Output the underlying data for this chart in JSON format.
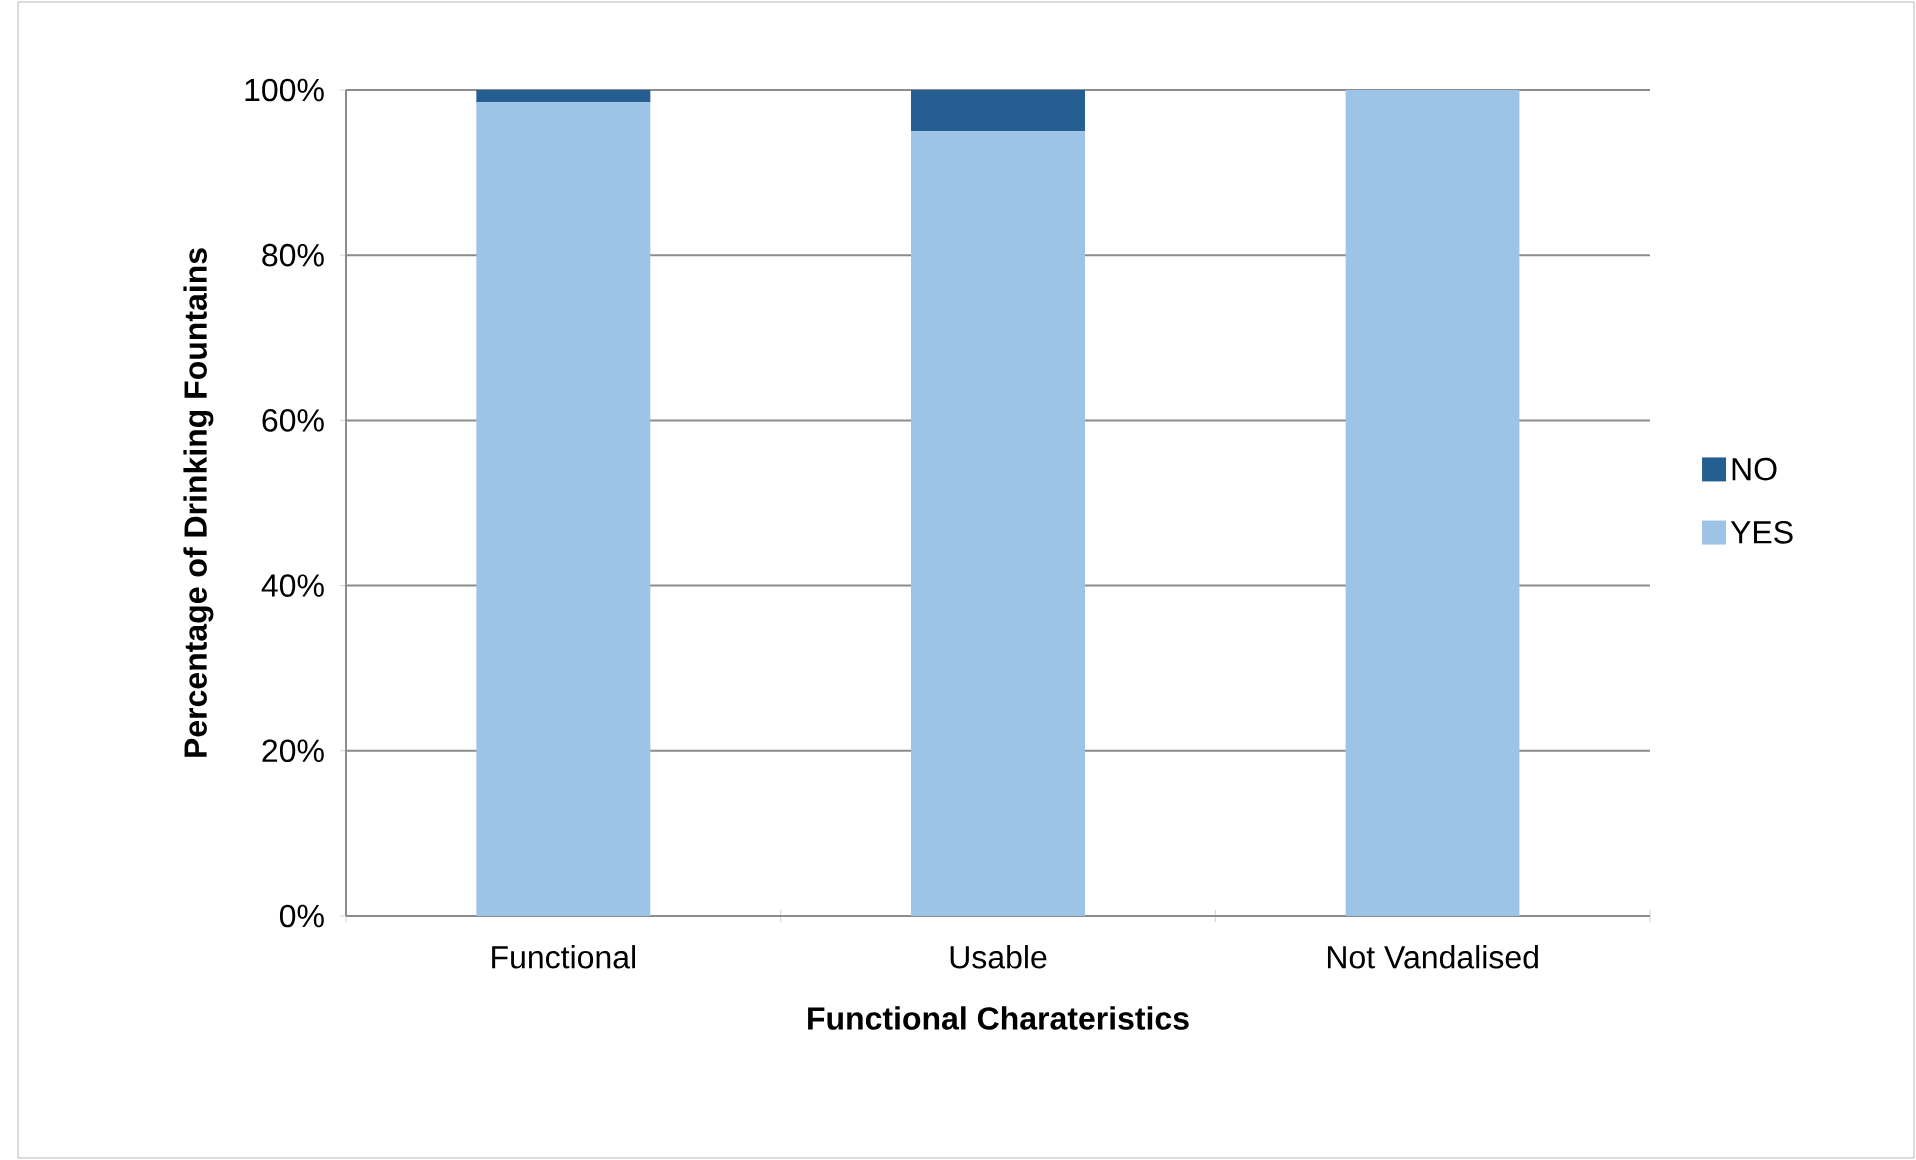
{
  "chart_data": {
    "type": "bar",
    "stacked": true,
    "xlabel": "Functional Charateristics",
    "ylabel": "Percentage of Drinking Fountains",
    "categories": [
      "Functional",
      "Usable",
      "Not Vandalised"
    ],
    "series": [
      {
        "name": "YES",
        "color": "#9dc3e6",
        "values": [
          98.5,
          95,
          100
        ]
      },
      {
        "name": "NO",
        "color": "#255e91",
        "values": [
          1.5,
          5,
          0
        ]
      }
    ],
    "ylim": [
      0,
      100
    ],
    "yticks": [
      {
        "value": 0,
        "label": "0%"
      },
      {
        "value": 20,
        "label": "20%"
      },
      {
        "value": 40,
        "label": "40%"
      },
      {
        "value": 60,
        "label": "60%"
      },
      {
        "value": 80,
        "label": "80%"
      },
      {
        "value": 100,
        "label": "100%"
      }
    ],
    "grid": "y",
    "legend": "right"
  }
}
